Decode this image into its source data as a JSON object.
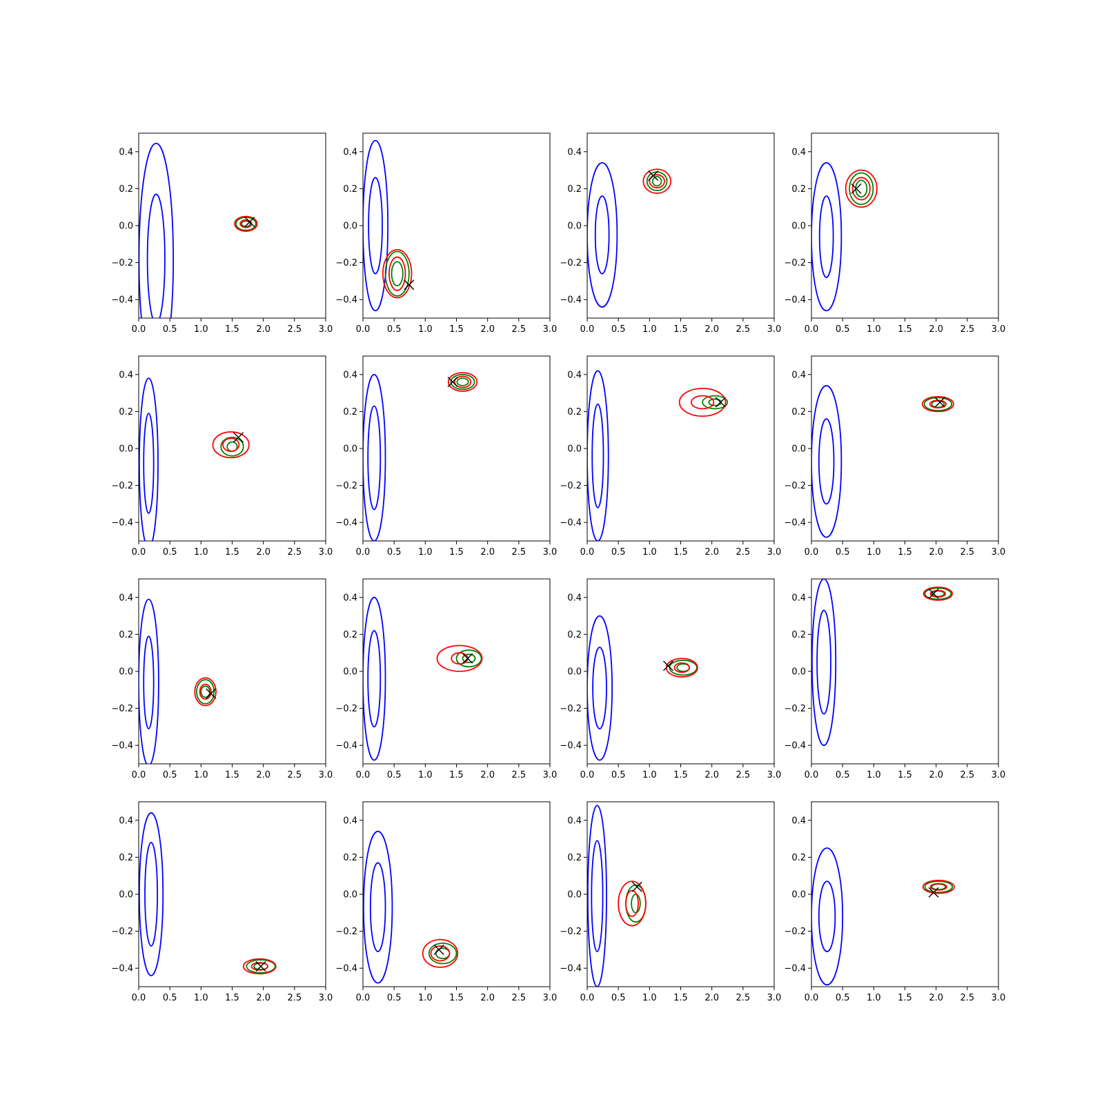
{
  "colors": {
    "posterior_wide": "#0000ff",
    "posterior_a": "#008000",
    "posterior_b": "#ff0000",
    "truth_marker": "#000000"
  },
  "marker": "x-cross",
  "grid": false,
  "chart_data": [
    {
      "type": "contour",
      "xlim": [
        0,
        3.0
      ],
      "ylim": [
        -0.5,
        0.5
      ],
      "xticks": [
        "0.0",
        "0.5",
        "1.0",
        "1.5",
        "2.0",
        "2.5",
        "3.0"
      ],
      "yticks": [
        "−0.4",
        "−0.2",
        "0.0",
        "0.2",
        "0.4"
      ],
      "truth": [
        1.78,
        0.02
      ],
      "blue": {
        "center": [
          0.28,
          -0.18
        ],
        "outer": [
          0.55,
          1.25
        ],
        "inner": [
          0.28,
          0.7
        ]
      },
      "green": {
        "center": [
          1.72,
          0.01
        ],
        "outer": [
          0.32,
          0.07
        ],
        "inner": [
          0.14,
          0.03
        ]
      },
      "red": {
        "center": [
          1.72,
          0.01
        ],
        "outer": [
          0.36,
          0.08
        ],
        "inner": [
          0.18,
          0.04
        ]
      }
    },
    {
      "type": "contour",
      "xlim": [
        0,
        3.0
      ],
      "ylim": [
        -0.5,
        0.5
      ],
      "xticks": [
        "0.0",
        "0.5",
        "1.0",
        "1.5",
        "2.0",
        "2.5",
        "3.0"
      ],
      "yticks": [
        "−0.4",
        "−0.2",
        "0.0",
        "0.2",
        "0.4"
      ],
      "truth": [
        0.74,
        -0.32
      ],
      "blue": {
        "center": [
          0.2,
          0.0
        ],
        "outer": [
          0.4,
          0.92
        ],
        "inner": [
          0.22,
          0.52
        ]
      },
      "green": {
        "center": [
          0.55,
          -0.26
        ],
        "outer": [
          0.38,
          0.24
        ],
        "inner": [
          0.18,
          0.13
        ]
      },
      "red": {
        "center": [
          0.55,
          -0.26
        ],
        "outer": [
          0.46,
          0.26
        ],
        "inner": [
          0.26,
          0.18
        ]
      }
    },
    {
      "type": "contour",
      "xlim": [
        0,
        3.0
      ],
      "ylim": [
        -0.5,
        0.5
      ],
      "xticks": [
        "0.0",
        "0.5",
        "1.0",
        "1.5",
        "2.0",
        "2.5",
        "3.0"
      ],
      "yticks": [
        "−0.4",
        "−0.2",
        "0.0",
        "0.2",
        "0.4"
      ],
      "truth": [
        1.06,
        0.27
      ],
      "blue": {
        "center": [
          0.24,
          -0.05
        ],
        "outer": [
          0.48,
          0.78
        ],
        "inner": [
          0.22,
          0.42
        ]
      },
      "green": {
        "center": [
          1.12,
          0.24
        ],
        "outer": [
          0.32,
          0.1
        ],
        "inner": [
          0.14,
          0.05
        ]
      },
      "red": {
        "center": [
          1.12,
          0.24
        ],
        "outer": [
          0.44,
          0.13
        ],
        "inner": [
          0.24,
          0.07
        ]
      }
    },
    {
      "type": "contour",
      "xlim": [
        0,
        3.0
      ],
      "ylim": [
        -0.5,
        0.5
      ],
      "xticks": [
        "0.0",
        "0.5",
        "1.0",
        "1.5",
        "2.0",
        "2.5",
        "3.0"
      ],
      "yticks": [
        "−0.4",
        "−0.2",
        "0.0",
        "0.2",
        "0.4"
      ],
      "truth": [
        0.72,
        0.2
      ],
      "blue": {
        "center": [
          0.24,
          -0.06
        ],
        "outer": [
          0.48,
          0.8
        ],
        "inner": [
          0.22,
          0.44
        ]
      },
      "green": {
        "center": [
          0.8,
          0.2
        ],
        "outer": [
          0.38,
          0.17
        ],
        "inner": [
          0.18,
          0.09
        ]
      },
      "red": {
        "center": [
          0.8,
          0.2
        ],
        "outer": [
          0.5,
          0.2
        ],
        "inner": [
          0.28,
          0.12
        ]
      }
    },
    {
      "type": "contour",
      "xlim": [
        0,
        3.0
      ],
      "ylim": [
        -0.5,
        0.5
      ],
      "xticks": [
        "0.0",
        "0.5",
        "1.0",
        "1.5",
        "2.0",
        "2.5",
        "3.0"
      ],
      "yticks": [
        "−0.4",
        "−0.2",
        "0.0",
        "0.2",
        "0.4"
      ],
      "truth": [
        1.6,
        0.06
      ],
      "blue": {
        "center": [
          0.16,
          -0.08
        ],
        "outer": [
          0.3,
          0.92
        ],
        "inner": [
          0.16,
          0.54
        ]
      },
      "green": {
        "center": [
          1.5,
          0.01
        ],
        "outer": [
          0.36,
          0.1
        ],
        "inner": [
          0.16,
          0.05
        ]
      },
      "red": {
        "center": [
          1.48,
          0.02
        ],
        "outer": [
          0.58,
          0.14
        ],
        "inner": [
          0.26,
          0.07
        ]
      }
    },
    {
      "type": "contour",
      "xlim": [
        0,
        3.0
      ],
      "ylim": [
        -0.5,
        0.5
      ],
      "xticks": [
        "0.0",
        "0.5",
        "1.0",
        "1.5",
        "2.0",
        "2.5",
        "3.0"
      ],
      "yticks": [
        "−0.4",
        "−0.2",
        "0.0",
        "0.2",
        "0.4"
      ],
      "truth": [
        1.44,
        0.36
      ],
      "blue": {
        "center": [
          0.18,
          -0.05
        ],
        "outer": [
          0.36,
          0.9
        ],
        "inner": [
          0.2,
          0.56
        ]
      },
      "green": {
        "center": [
          1.6,
          0.36
        ],
        "outer": [
          0.38,
          0.08
        ],
        "inner": [
          0.18,
          0.04
        ]
      },
      "red": {
        "center": [
          1.6,
          0.36
        ],
        "outer": [
          0.46,
          0.1
        ],
        "inner": [
          0.26,
          0.06
        ]
      }
    },
    {
      "type": "contour",
      "xlim": [
        0,
        3.0
      ],
      "ylim": [
        -0.5,
        0.5
      ],
      "xticks": [
        "0.0",
        "0.5",
        "1.0",
        "1.5",
        "2.0",
        "2.5",
        "3.0"
      ],
      "yticks": [
        "−0.4",
        "−0.2",
        "0.0",
        "0.2",
        "0.4"
      ],
      "truth": [
        2.14,
        0.25
      ],
      "blue": {
        "center": [
          0.17,
          -0.04
        ],
        "outer": [
          0.34,
          0.92
        ],
        "inner": [
          0.18,
          0.56
        ]
      },
      "green": {
        "center": [
          2.05,
          0.25
        ],
        "outer": [
          0.4,
          0.07
        ],
        "inner": [
          0.2,
          0.035
        ]
      },
      "red": {
        "center": [
          1.85,
          0.25
        ],
        "outer": [
          0.74,
          0.15
        ],
        "inner": [
          0.36,
          0.07
        ]
      }
    },
    {
      "type": "contour",
      "xlim": [
        0,
        3.0
      ],
      "ylim": [
        -0.5,
        0.5
      ],
      "xticks": [
        "0.0",
        "0.5",
        "1.0",
        "1.5",
        "2.0",
        "2.5",
        "3.0"
      ],
      "yticks": [
        "−0.4",
        "−0.2",
        "0.0",
        "0.2",
        "0.4"
      ],
      "truth": [
        2.06,
        0.25
      ],
      "blue": {
        "center": [
          0.24,
          -0.07
        ],
        "outer": [
          0.48,
          0.82
        ],
        "inner": [
          0.24,
          0.46
        ]
      },
      "green": {
        "center": [
          2.03,
          0.24
        ],
        "outer": [
          0.44,
          0.07
        ],
        "inner": [
          0.2,
          0.035
        ]
      },
      "red": {
        "center": [
          2.03,
          0.24
        ],
        "outer": [
          0.5,
          0.08
        ],
        "inner": [
          0.26,
          0.04
        ]
      }
    },
    {
      "type": "contour",
      "xlim": [
        0,
        3.0
      ],
      "ylim": [
        -0.5,
        0.5
      ],
      "xticks": [
        "0.0",
        "0.5",
        "1.0",
        "1.5",
        "2.0",
        "2.5",
        "3.0"
      ],
      "yticks": [
        "−0.4",
        "−0.2",
        "0.0",
        "0.2",
        "0.4"
      ],
      "truth": [
        1.16,
        -0.12
      ],
      "blue": {
        "center": [
          0.16,
          -0.06
        ],
        "outer": [
          0.32,
          0.9
        ],
        "inner": [
          0.16,
          0.5
        ]
      },
      "green": {
        "center": [
          1.07,
          -0.11
        ],
        "outer": [
          0.28,
          0.13
        ],
        "inner": [
          0.14,
          0.06
        ]
      },
      "red": {
        "center": [
          1.07,
          -0.11
        ],
        "outer": [
          0.34,
          0.15
        ],
        "inner": [
          0.18,
          0.08
        ]
      }
    },
    {
      "type": "contour",
      "xlim": [
        0,
        3.0
      ],
      "ylim": [
        -0.5,
        0.5
      ],
      "xticks": [
        "0.0",
        "0.5",
        "1.0",
        "1.5",
        "2.0",
        "2.5",
        "3.0"
      ],
      "yticks": [
        "−0.4",
        "−0.2",
        "0.0",
        "0.2",
        "0.4"
      ],
      "truth": [
        1.68,
        0.07
      ],
      "blue": {
        "center": [
          0.18,
          -0.04
        ],
        "outer": [
          0.36,
          0.88
        ],
        "inner": [
          0.2,
          0.52
        ]
      },
      "green": {
        "center": [
          1.7,
          0.07
        ],
        "outer": [
          0.4,
          0.09
        ],
        "inner": [
          0.2,
          0.045
        ]
      },
      "red": {
        "center": [
          1.55,
          0.07
        ],
        "outer": [
          0.72,
          0.14
        ],
        "inner": [
          0.26,
          0.06
        ]
      }
    },
    {
      "type": "contour",
      "xlim": [
        0,
        3.0
      ],
      "ylim": [
        -0.5,
        0.5
      ],
      "xticks": [
        "0.0",
        "0.5",
        "1.0",
        "1.5",
        "2.0",
        "2.5",
        "3.0"
      ],
      "yticks": [
        "−0.4",
        "−0.2",
        "0.0",
        "0.2",
        "0.4"
      ],
      "truth": [
        1.3,
        0.03
      ],
      "blue": {
        "center": [
          0.2,
          -0.09
        ],
        "outer": [
          0.4,
          0.78
        ],
        "inner": [
          0.22,
          0.44
        ]
      },
      "green": {
        "center": [
          1.54,
          0.02
        ],
        "outer": [
          0.44,
          0.08
        ],
        "inner": [
          0.2,
          0.04
        ]
      },
      "red": {
        "center": [
          1.52,
          0.02
        ],
        "outer": [
          0.5,
          0.1
        ],
        "inner": [
          0.24,
          0.05
        ]
      }
    },
    {
      "type": "contour",
      "xlim": [
        0,
        3.0
      ],
      "ylim": [
        -0.5,
        0.5
      ],
      "xticks": [
        "0.0",
        "0.5",
        "1.0",
        "1.5",
        "2.0",
        "2.5",
        "3.0"
      ],
      "yticks": [
        "−0.4",
        "−0.2",
        "0.0",
        "0.2",
        "0.4"
      ],
      "truth": [
        1.96,
        0.42
      ],
      "blue": {
        "center": [
          0.2,
          0.05
        ],
        "outer": [
          0.38,
          0.9
        ],
        "inner": [
          0.22,
          0.56
        ]
      },
      "green": {
        "center": [
          2.03,
          0.42
        ],
        "outer": [
          0.42,
          0.06
        ],
        "inner": [
          0.2,
          0.03
        ]
      },
      "red": {
        "center": [
          2.03,
          0.42
        ],
        "outer": [
          0.46,
          0.07
        ],
        "inner": [
          0.24,
          0.035
        ]
      }
    },
    {
      "type": "contour",
      "xlim": [
        0,
        3.0
      ],
      "ylim": [
        -0.5,
        0.5
      ],
      "xticks": [
        "0.0",
        "0.5",
        "1.0",
        "1.5",
        "2.0",
        "2.5",
        "3.0"
      ],
      "yticks": [
        "−0.4",
        "−0.2",
        "0.0",
        "0.2",
        "0.4"
      ],
      "truth": [
        1.96,
        -0.39
      ],
      "blue": {
        "center": [
          0.2,
          0.0
        ],
        "outer": [
          0.38,
          0.88
        ],
        "inner": [
          0.2,
          0.56
        ]
      },
      "green": {
        "center": [
          1.96,
          -0.39
        ],
        "outer": [
          0.46,
          0.07
        ],
        "inner": [
          0.22,
          0.035
        ]
      },
      "red": {
        "center": [
          1.94,
          -0.39
        ],
        "outer": [
          0.52,
          0.08
        ],
        "inner": [
          0.26,
          0.04
        ]
      }
    },
    {
      "type": "contour",
      "xlim": [
        0,
        3.0
      ],
      "ylim": [
        -0.5,
        0.5
      ],
      "xticks": [
        "0.0",
        "0.5",
        "1.0",
        "1.5",
        "2.0",
        "2.5",
        "3.0"
      ],
      "yticks": [
        "−0.4",
        "−0.2",
        "0.0",
        "0.2",
        "0.4"
      ],
      "truth": [
        1.22,
        -0.3
      ],
      "blue": {
        "center": [
          0.24,
          -0.07
        ],
        "outer": [
          0.46,
          0.82
        ],
        "inner": [
          0.24,
          0.48
        ]
      },
      "green": {
        "center": [
          1.28,
          -0.32
        ],
        "outer": [
          0.44,
          0.11
        ],
        "inner": [
          0.22,
          0.055
        ]
      },
      "red": {
        "center": [
          1.24,
          -0.32
        ],
        "outer": [
          0.56,
          0.15
        ],
        "inner": [
          0.3,
          0.08
        ]
      }
    },
    {
      "type": "contour",
      "xlim": [
        0,
        3.0
      ],
      "ylim": [
        -0.5,
        0.5
      ],
      "xticks": [
        "0.0",
        "0.5",
        "1.0",
        "1.5",
        "2.0",
        "2.5",
        "3.0"
      ],
      "yticks": [
        "−0.4",
        "−0.2",
        "0.0",
        "0.2",
        "0.4"
      ],
      "truth": [
        0.8,
        0.04
      ],
      "blue": {
        "center": [
          0.16,
          -0.01
        ],
        "outer": [
          0.3,
          0.98
        ],
        "inner": [
          0.18,
          0.6
        ]
      },
      "green": {
        "center": [
          0.78,
          -0.05
        ],
        "outer": [
          0.32,
          0.2
        ],
        "inner": [
          0.14,
          0.1
        ]
      },
      "red": {
        "center": [
          0.72,
          -0.05
        ],
        "outer": [
          0.44,
          0.24
        ],
        "inner": [
          0.2,
          0.14
        ]
      }
    },
    {
      "type": "contour",
      "xlim": [
        0,
        3.0
      ],
      "ylim": [
        -0.5,
        0.5
      ],
      "xticks": [
        "0.0",
        "0.5",
        "1.0",
        "1.5",
        "2.0",
        "2.5",
        "3.0"
      ],
      "yticks": [
        "−0.4",
        "−0.2",
        "0.0",
        "0.2",
        "0.4"
      ],
      "truth": [
        1.96,
        0.01
      ],
      "blue": {
        "center": [
          0.25,
          -0.12
        ],
        "outer": [
          0.5,
          0.74
        ],
        "inner": [
          0.26,
          0.38
        ]
      },
      "green": {
        "center": [
          2.04,
          0.04
        ],
        "outer": [
          0.44,
          0.06
        ],
        "inner": [
          0.22,
          0.03
        ]
      },
      "red": {
        "center": [
          2.04,
          0.04
        ],
        "outer": [
          0.5,
          0.07
        ],
        "inner": [
          0.26,
          0.035
        ]
      }
    }
  ]
}
